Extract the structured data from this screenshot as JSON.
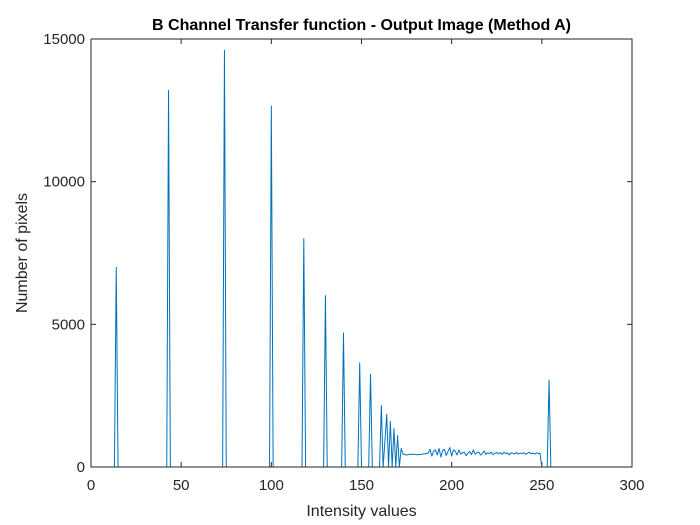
{
  "figure": {
    "background": "#ffffff",
    "axes_color": "#262626"
  },
  "chart_data": {
    "type": "line",
    "title": "B Channel Transfer function - Output Image (Method A)",
    "xlabel": "Intensity values",
    "ylabel": "Number of pixels",
    "xlim": [
      0,
      300
    ],
    "ylim": [
      0,
      15000
    ],
    "xticks": [
      0,
      50,
      100,
      150,
      200,
      250,
      300
    ],
    "yticks": [
      0,
      5000,
      10000,
      15000
    ],
    "xtick_labels": [
      "0",
      "50",
      "100",
      "150",
      "200",
      "250",
      "300"
    ],
    "ytick_labels": [
      "0",
      "5000",
      "10000",
      "15000"
    ],
    "grid": false,
    "box": true,
    "series": [
      {
        "color": "#0072BD",
        "x": [
          0,
          13,
          14,
          15,
          42,
          43,
          44,
          73,
          74,
          75,
          99,
          100,
          101,
          117,
          118,
          119,
          129,
          130,
          131,
          139,
          140,
          141,
          148,
          149,
          150,
          154,
          155,
          156,
          160,
          161,
          162,
          164,
          165,
          166,
          167,
          168,
          169,
          170,
          171,
          172,
          173,
          175,
          178,
          181,
          184,
          187,
          188,
          189,
          190,
          191,
          192,
          193,
          194,
          195,
          196,
          197,
          198,
          199,
          200,
          201,
          202,
          203,
          204,
          205,
          206,
          207,
          208,
          209,
          210,
          211,
          212,
          213,
          214,
          215,
          216,
          217,
          218,
          219,
          220,
          221,
          222,
          223,
          224,
          225,
          226,
          227,
          228,
          229,
          230,
          231,
          232,
          233,
          234,
          235,
          236,
          237,
          238,
          239,
          240,
          241,
          242,
          243,
          244,
          245,
          246,
          247,
          248,
          249,
          250,
          251,
          252,
          253,
          254,
          255
        ],
        "y": [
          0,
          0,
          7000,
          0,
          0,
          13200,
          0,
          0,
          14600,
          0,
          0,
          12650,
          0,
          0,
          8000,
          0,
          0,
          6000,
          0,
          0,
          4700,
          0,
          0,
          3650,
          0,
          0,
          3250,
          0,
          0,
          2150,
          0,
          1850,
          0,
          1600,
          0,
          1350,
          0,
          1100,
          0,
          650,
          450,
          420,
          450,
          430,
          450,
          480,
          620,
          380,
          550,
          600,
          420,
          650,
          350,
          580,
          620,
          400,
          550,
          680,
          380,
          600,
          550,
          420,
          600,
          450,
          500,
          520,
          400,
          480,
          550,
          430,
          600,
          450,
          500,
          520,
          420,
          480,
          560,
          440,
          500,
          470,
          520,
          430,
          480,
          510,
          460,
          500,
          440,
          520,
          470,
          490,
          430,
          500,
          480,
          460,
          510,
          450,
          490,
          470,
          500,
          440,
          480,
          520,
          460,
          490,
          450,
          500,
          470,
          480,
          0,
          0,
          0,
          0,
          3050,
          0
        ]
      }
    ]
  }
}
